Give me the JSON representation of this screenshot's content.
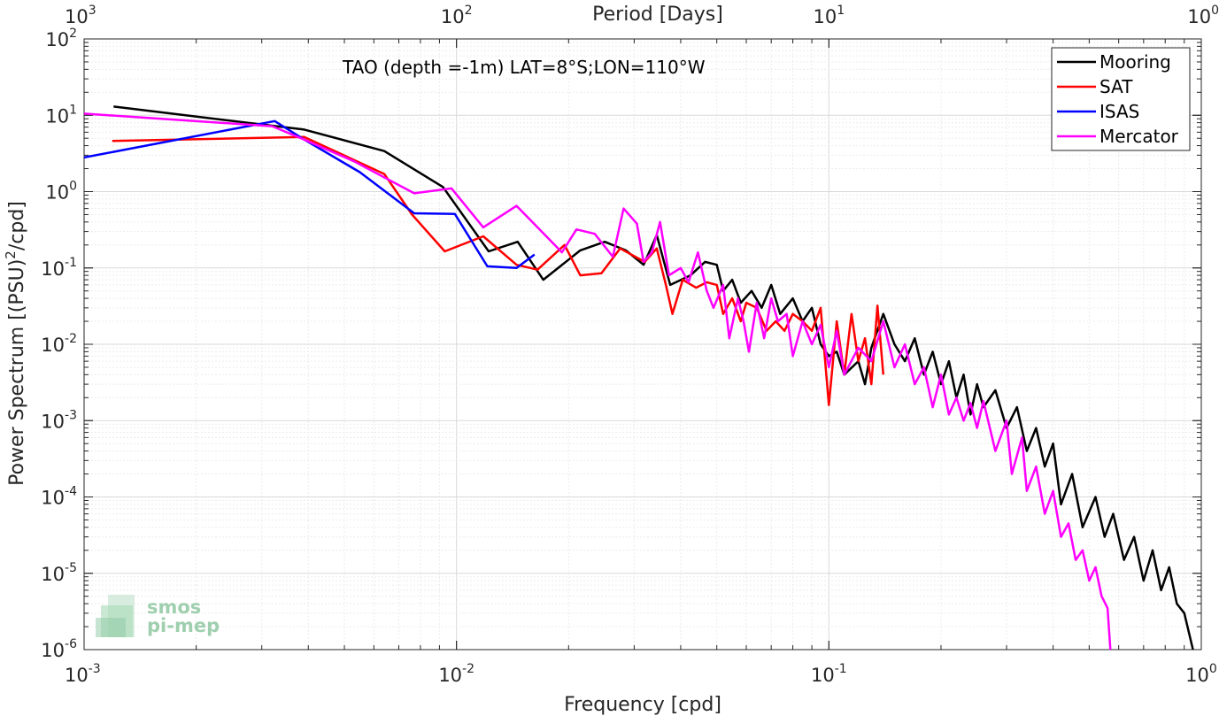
{
  "chart_data": {
    "type": "line",
    "title": "TAO (depth =-1m) LAT=8°S;LON=110°W",
    "xlabel": "Frequency [cpd]",
    "ylabel": "Power Spectrum [(PSU)",
    "ylabel_sup": "2",
    "ylabel_tail": "/cpd]",
    "top_xlabel": "Period [Days]",
    "xscale": "log",
    "yscale": "log",
    "xlim": [
      0.001,
      1
    ],
    "ylim": [
      1e-06,
      100
    ],
    "grid": true,
    "legend_position": "top-right",
    "x_ticks": [
      {
        "value": 0.001,
        "base": "10",
        "exp": "-3"
      },
      {
        "value": 0.01,
        "base": "10",
        "exp": "-2"
      },
      {
        "value": 0.1,
        "base": "10",
        "exp": "-1"
      },
      {
        "value": 1,
        "base": "10",
        "exp": "0"
      }
    ],
    "y_ticks": [
      {
        "value": 1e-06,
        "base": "10",
        "exp": "-6"
      },
      {
        "value": 1e-05,
        "base": "10",
        "exp": "-5"
      },
      {
        "value": 0.0001,
        "base": "10",
        "exp": "-4"
      },
      {
        "value": 0.001,
        "base": "10",
        "exp": "-3"
      },
      {
        "value": 0.01,
        "base": "10",
        "exp": "-2"
      },
      {
        "value": 0.1,
        "base": "10",
        "exp": "-1"
      },
      {
        "value": 1,
        "base": "10",
        "exp": "0"
      },
      {
        "value": 10,
        "base": "10",
        "exp": "1"
      },
      {
        "value": 100,
        "base": "10",
        "exp": "2"
      }
    ],
    "top_ticks": [
      {
        "value": 0.001,
        "base": "10",
        "exp": "3"
      },
      {
        "value": 0.01,
        "base": "10",
        "exp": "2"
      },
      {
        "value": 0.1,
        "base": "10",
        "exp": "1"
      },
      {
        "value": 1,
        "base": "10",
        "exp": "0"
      }
    ],
    "series": [
      {
        "name": "Mooring",
        "color": "#000000",
        "points": [
          [
            0.0012,
            13
          ],
          [
            0.0039,
            6.5
          ],
          [
            0.0064,
            3.4
          ],
          [
            0.0092,
            1.15
          ],
          [
            0.0122,
            0.165
          ],
          [
            0.0146,
            0.22
          ],
          [
            0.0171,
            0.07
          ],
          [
            0.0215,
            0.17
          ],
          [
            0.025,
            0.22
          ],
          [
            0.0285,
            0.17
          ],
          [
            0.0318,
            0.11
          ],
          [
            0.0345,
            0.27
          ],
          [
            0.0375,
            0.06
          ],
          [
            0.0425,
            0.08
          ],
          [
            0.0465,
            0.12
          ],
          [
            0.05,
            0.11
          ],
          [
            0.052,
            0.05
          ],
          [
            0.055,
            0.07
          ],
          [
            0.058,
            0.035
          ],
          [
            0.062,
            0.05
          ],
          [
            0.066,
            0.03
          ],
          [
            0.07,
            0.06
          ],
          [
            0.074,
            0.025
          ],
          [
            0.08,
            0.04
          ],
          [
            0.085,
            0.02
          ],
          [
            0.09,
            0.03
          ],
          [
            0.095,
            0.01
          ],
          [
            0.1,
            0.007
          ],
          [
            0.105,
            0.008
          ],
          [
            0.11,
            0.004
          ],
          [
            0.12,
            0.006
          ],
          [
            0.125,
            0.003
          ],
          [
            0.13,
            0.009
          ],
          [
            0.14,
            0.025
          ],
          [
            0.15,
            0.01
          ],
          [
            0.16,
            0.006
          ],
          [
            0.17,
            0.012
          ],
          [
            0.18,
            0.004
          ],
          [
            0.19,
            0.008
          ],
          [
            0.2,
            0.003
          ],
          [
            0.21,
            0.006
          ],
          [
            0.22,
            0.002
          ],
          [
            0.23,
            0.004
          ],
          [
            0.24,
            0.0012
          ],
          [
            0.25,
            0.003
          ],
          [
            0.26,
            0.0015
          ],
          [
            0.28,
            0.0025
          ],
          [
            0.3,
            0.0008
          ],
          [
            0.32,
            0.0015
          ],
          [
            0.34,
            0.0004
          ],
          [
            0.36,
            0.0008
          ],
          [
            0.38,
            0.00025
          ],
          [
            0.4,
            0.0005
          ],
          [
            0.42,
            8e-05
          ],
          [
            0.45,
            0.0002
          ],
          [
            0.48,
            4e-05
          ],
          [
            0.52,
            0.0001
          ],
          [
            0.55,
            3e-05
          ],
          [
            0.58,
            6e-05
          ],
          [
            0.62,
            1.5e-05
          ],
          [
            0.66,
            3e-05
          ],
          [
            0.7,
            8e-06
          ],
          [
            0.74,
            2e-05
          ],
          [
            0.78,
            6e-06
          ],
          [
            0.82,
            1.2e-05
          ],
          [
            0.86,
            4e-06
          ],
          [
            0.9,
            3e-06
          ],
          [
            0.95,
            1e-06
          ]
        ]
      },
      {
        "name": "SAT",
        "color": "#ff0000",
        "points": [
          [
            0.00119,
            4.6
          ],
          [
            0.0039,
            5.2
          ],
          [
            0.0064,
            1.7
          ],
          [
            0.0076,
            0.5
          ],
          [
            0.0093,
            0.165
          ],
          [
            0.0118,
            0.26
          ],
          [
            0.0145,
            0.11
          ],
          [
            0.0165,
            0.095
          ],
          [
            0.0195,
            0.2
          ],
          [
            0.0215,
            0.08
          ],
          [
            0.0245,
            0.085
          ],
          [
            0.0275,
            0.18
          ],
          [
            0.032,
            0.12
          ],
          [
            0.0345,
            0.18
          ],
          [
            0.0365,
            0.06
          ],
          [
            0.038,
            0.025
          ],
          [
            0.0405,
            0.07
          ],
          [
            0.044,
            0.055
          ],
          [
            0.047,
            0.065
          ],
          [
            0.05,
            0.06
          ],
          [
            0.052,
            0.025
          ],
          [
            0.055,
            0.04
          ],
          [
            0.058,
            0.02
          ],
          [
            0.06,
            0.035
          ],
          [
            0.064,
            0.03
          ],
          [
            0.068,
            0.015
          ],
          [
            0.072,
            0.02
          ],
          [
            0.076,
            0.015
          ],
          [
            0.08,
            0.025
          ],
          [
            0.085,
            0.02
          ],
          [
            0.09,
            0.015
          ],
          [
            0.095,
            0.03
          ],
          [
            0.1,
            0.0016
          ],
          [
            0.105,
            0.02
          ],
          [
            0.11,
            0.004
          ],
          [
            0.115,
            0.025
          ],
          [
            0.12,
            0.006
          ],
          [
            0.125,
            0.012
          ],
          [
            0.13,
            0.003
          ],
          [
            0.135,
            0.032
          ],
          [
            0.14,
            0.004
          ]
        ]
      },
      {
        "name": "ISAS",
        "color": "#0000ff",
        "points": [
          [
            0.001,
            2.8
          ],
          [
            0.00325,
            8.4
          ],
          [
            0.0039,
            4.8
          ],
          [
            0.0055,
            1.8
          ],
          [
            0.0077,
            0.52
          ],
          [
            0.0099,
            0.51
          ],
          [
            0.0121,
            0.105
          ],
          [
            0.0145,
            0.1
          ],
          [
            0.0162,
            0.15
          ]
        ]
      },
      {
        "name": "Mercator",
        "color": "#ff00ff",
        "points": [
          [
            0.001,
            10.5
          ],
          [
            0.0032,
            7.2
          ],
          [
            0.0039,
            4.8
          ],
          [
            0.0053,
            2.5
          ],
          [
            0.0077,
            0.95
          ],
          [
            0.0097,
            1.1
          ],
          [
            0.0118,
            0.34
          ],
          [
            0.0145,
            0.65
          ],
          [
            0.0192,
            0.16
          ],
          [
            0.021,
            0.32
          ],
          [
            0.0235,
            0.28
          ],
          [
            0.0263,
            0.14
          ],
          [
            0.0281,
            0.6
          ],
          [
            0.0305,
            0.38
          ],
          [
            0.0318,
            0.12
          ],
          [
            0.0335,
            0.16
          ],
          [
            0.0352,
            0.4
          ],
          [
            0.0372,
            0.08
          ],
          [
            0.04,
            0.1
          ],
          [
            0.042,
            0.065
          ],
          [
            0.0445,
            0.16
          ],
          [
            0.047,
            0.05
          ],
          [
            0.049,
            0.03
          ],
          [
            0.052,
            0.06
          ],
          [
            0.054,
            0.012
          ],
          [
            0.057,
            0.04
          ],
          [
            0.059,
            0.02
          ],
          [
            0.061,
            0.008
          ],
          [
            0.064,
            0.035
          ],
          [
            0.067,
            0.012
          ],
          [
            0.07,
            0.04
          ],
          [
            0.073,
            0.02
          ],
          [
            0.077,
            0.025
          ],
          [
            0.08,
            0.007
          ],
          [
            0.085,
            0.02
          ],
          [
            0.09,
            0.01
          ],
          [
            0.095,
            0.018
          ],
          [
            0.1,
            0.005
          ],
          [
            0.105,
            0.015
          ],
          [
            0.11,
            0.004
          ],
          [
            0.12,
            0.009
          ],
          [
            0.13,
            0.006
          ],
          [
            0.14,
            0.02
          ],
          [
            0.15,
            0.005
          ],
          [
            0.16,
            0.01
          ],
          [
            0.17,
            0.003
          ],
          [
            0.18,
            0.005
          ],
          [
            0.19,
            0.0015
          ],
          [
            0.2,
            0.004
          ],
          [
            0.21,
            0.0012
          ],
          [
            0.22,
            0.002
          ],
          [
            0.23,
            0.001
          ],
          [
            0.24,
            0.0017
          ],
          [
            0.25,
            0.0008
          ],
          [
            0.26,
            0.0018
          ],
          [
            0.28,
            0.0004
          ],
          [
            0.3,
            0.001
          ],
          [
            0.31,
            0.0002
          ],
          [
            0.33,
            0.0006
          ],
          [
            0.34,
            0.00012
          ],
          [
            0.36,
            0.00025
          ],
          [
            0.38,
            6e-05
          ],
          [
            0.4,
            0.00012
          ],
          [
            0.42,
            3e-05
          ],
          [
            0.44,
            4.5e-05
          ],
          [
            0.46,
            1.5e-05
          ],
          [
            0.48,
            2e-05
          ],
          [
            0.5,
            8e-06
          ],
          [
            0.52,
            1.2e-05
          ],
          [
            0.54,
            5e-06
          ],
          [
            0.56,
            3.5e-06
          ],
          [
            0.57,
            1e-06
          ]
        ]
      }
    ]
  },
  "watermark": {
    "line1": "smos",
    "line2": "pi-mep",
    "color": "#9fcfae"
  }
}
